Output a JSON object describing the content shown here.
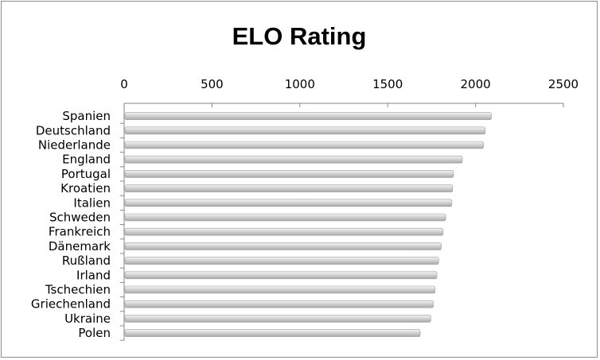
{
  "chart_data": {
    "type": "bar",
    "orientation": "horizontal",
    "title": "ELO Rating",
    "xlabel": "",
    "ylabel": "",
    "xlim": [
      0,
      2500
    ],
    "x_ticks": [
      "0",
      "500",
      "1000",
      "1500",
      "2000",
      "2500"
    ],
    "x_axis_position": "top",
    "grid": false,
    "legend": "none",
    "bar_color": "#c8c8c8",
    "categories": [
      "Spanien",
      "Deutschland",
      "Niederlande",
      "England",
      "Portugal",
      "Kroatien",
      "Italien",
      "Schweden",
      "Frankreich",
      "Dänemark",
      "Rußland",
      "Irland",
      "Tschechien",
      "Griechenland",
      "Ukraine",
      "Polen"
    ],
    "values": [
      2090,
      2055,
      2045,
      1925,
      1875,
      1870,
      1865,
      1830,
      1815,
      1805,
      1790,
      1780,
      1770,
      1760,
      1745,
      1685
    ]
  }
}
